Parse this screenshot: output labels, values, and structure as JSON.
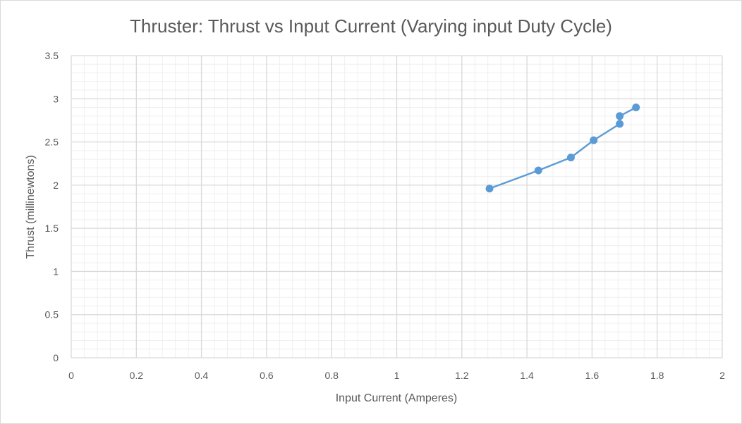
{
  "chart_data": {
    "type": "scatter",
    "title": "Thruster: Thrust vs Input Current (Varying input Duty Cycle)",
    "xlabel": "Input Current (Amperes)",
    "ylabel": "Thrust (millinewtons)",
    "xlim": [
      0,
      2
    ],
    "ylim": [
      0,
      3.5
    ],
    "x_ticks": [
      "0",
      "0.2",
      "0.4",
      "0.6",
      "0.8",
      "1",
      "1.2",
      "1.4",
      "1.6",
      "1.8",
      "2"
    ],
    "y_ticks": [
      "0",
      "0.5",
      "1",
      "1.5",
      "2",
      "2.5",
      "3",
      "3.5"
    ],
    "grid": "major and minor",
    "legend": "none",
    "series": [
      {
        "color": "#5b9bd5",
        "markers": true,
        "connected": true,
        "points": [
          {
            "x": 1.285,
            "y": 1.96
          },
          {
            "x": 1.435,
            "y": 2.17
          },
          {
            "x": 1.535,
            "y": 2.32
          },
          {
            "x": 1.605,
            "y": 2.52
          },
          {
            "x": 1.685,
            "y": 2.71
          },
          {
            "x": 1.685,
            "y": 2.8
          },
          {
            "x": 1.735,
            "y": 2.9
          }
        ]
      }
    ]
  }
}
